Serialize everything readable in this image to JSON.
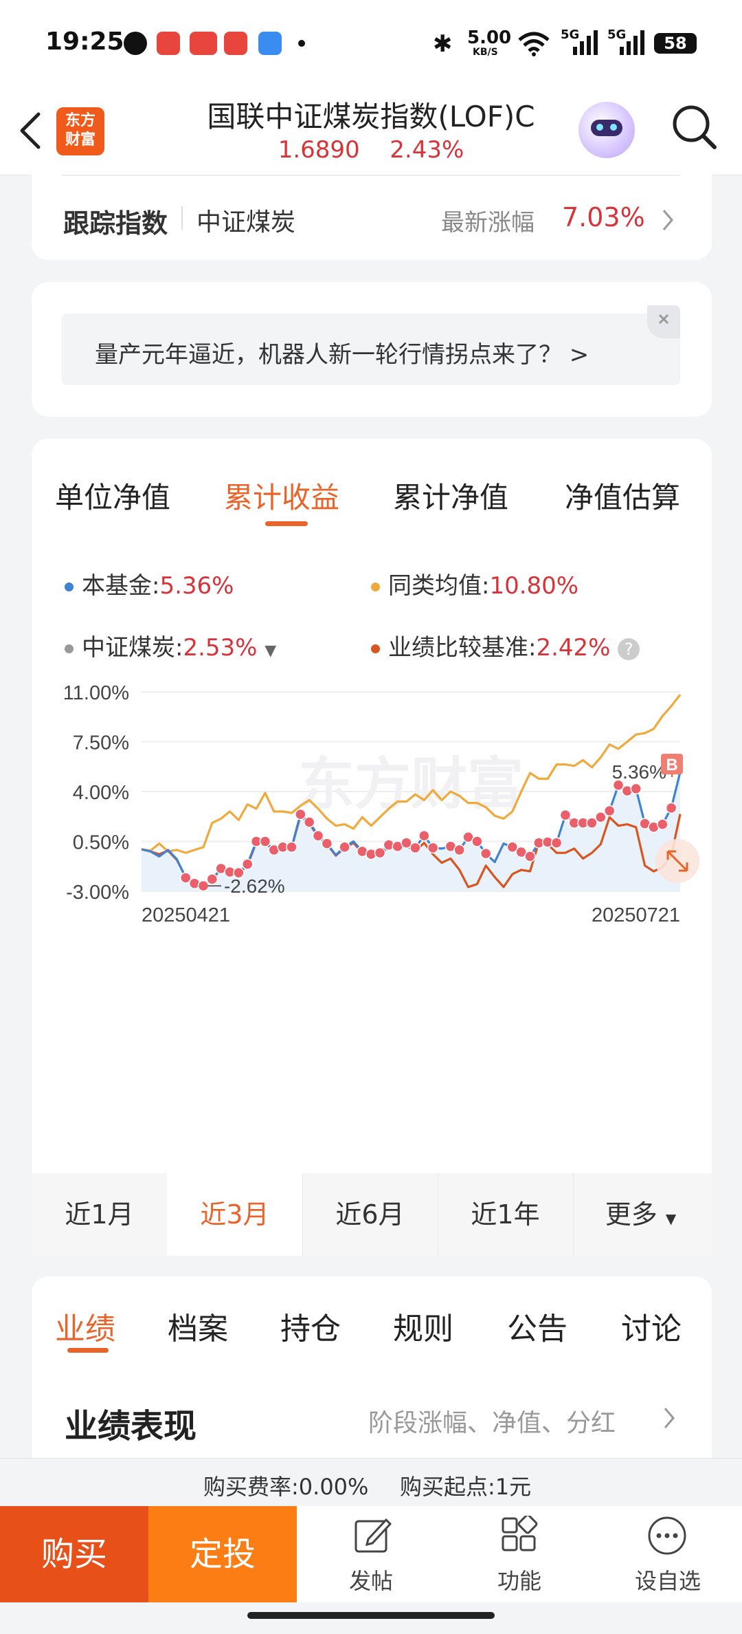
{
  "status_bar": {
    "time": "19:25",
    "net_speed": "5.00",
    "net_speed_unit": "KB/S",
    "signal_1": "5G",
    "signal_2": "5G",
    "battery": "58"
  },
  "header": {
    "logo_line1": "东方",
    "logo_line2": "财富",
    "title": "国联中证煤炭指数(LOF)C",
    "nav_value": "1.6890",
    "change_pct": "2.43%"
  },
  "tracking": {
    "label": "跟踪指数",
    "index_name": "中证煤炭",
    "latest_label": "最新涨幅",
    "latest_value": "7.03%"
  },
  "promo": {
    "text": "量产元年逼近，机器人新一轮行情拐点来了？ >"
  },
  "chart_tabs": [
    "单位净值",
    "累计收益",
    "累计净值",
    "净值估算"
  ],
  "legend": {
    "fund_label": "本基金:",
    "fund_value": "5.36%",
    "peer_label": "同类均值:",
    "peer_value": "10.80%",
    "index_label": "中证煤炭:",
    "index_value": "2.53%",
    "bench_label": "业绩比较基准:",
    "bench_value": "2.42%"
  },
  "colors": {
    "fund": "#3f82d4",
    "peer": "#f0a93a",
    "index": "#999999",
    "benchmark": "#d9541e",
    "accent": "#e8642a",
    "red": "#d7343a"
  },
  "chart_data": {
    "type": "line",
    "y_ticks": [
      "11.00%",
      "7.50%",
      "4.00%",
      "0.50%",
      "-3.00%"
    ],
    "ylim": [
      -3.0,
      11.0
    ],
    "x_start_label": "20250421",
    "x_end_label": "20250721",
    "min_label": "-2.62%",
    "end_label": "5.36%",
    "buy_marker": "B",
    "watermark": "东方财富",
    "series": [
      {
        "name": "本基金",
        "values": [
          -0.05,
          -0.2,
          -0.55,
          -0.1,
          -0.75,
          -2.05,
          -2.45,
          -2.62,
          -2.15,
          -1.4,
          -1.65,
          -1.7,
          -1.1,
          0.5,
          0.5,
          -0.1,
          0.1,
          0.1,
          2.4,
          1.85,
          0.9,
          0.35,
          -0.45,
          0.1,
          0.5,
          -0.2,
          -0.4,
          -0.3,
          0.25,
          0.15,
          0.4,
          0.05,
          0.9,
          0.05,
          0.0,
          0.15,
          -0.1,
          0.8,
          0.5,
          -0.35,
          -0.95,
          0.35,
          0.1,
          -0.25,
          -0.55,
          0.4,
          0.45,
          0.4,
          2.35,
          1.8,
          1.8,
          1.8,
          2.2,
          2.65,
          4.45,
          4.05,
          4.2,
          1.75,
          1.5,
          1.7,
          2.85,
          5.36
        ]
      },
      {
        "name": "同类均值",
        "values": [
          -0.05,
          -0.15,
          0.35,
          -0.2,
          -0.1,
          -0.3,
          -0.1,
          0.1,
          1.8,
          2.1,
          2.6,
          2.0,
          3.1,
          2.8,
          3.9,
          2.6,
          2.6,
          2.5,
          3.0,
          3.4,
          2.8,
          2.1,
          1.6,
          1.7,
          1.4,
          2.2,
          1.6,
          2.2,
          2.8,
          3.3,
          3.3,
          3.8,
          3.4,
          4.1,
          3.4,
          4.0,
          3.7,
          3.2,
          3.2,
          2.9,
          2.3,
          2.1,
          2.6,
          4.0,
          5.3,
          4.9,
          4.9,
          5.9,
          5.9,
          5.8,
          6.2,
          5.7,
          6.4,
          7.3,
          7.0,
          7.5,
          8.0,
          8.1,
          8.4,
          9.3,
          10.0,
          10.8
        ]
      },
      {
        "name": "业绩比较基准",
        "values": [
          -0.05,
          -0.2,
          -0.4,
          -0.15,
          -0.8,
          -2.0,
          -2.4,
          -2.55,
          -2.15,
          -1.45,
          -1.7,
          -1.75,
          -1.2,
          0.45,
          0.4,
          -0.15,
          0.05,
          0.05,
          2.3,
          1.75,
          0.85,
          0.3,
          -0.5,
          0.05,
          0.4,
          -0.3,
          -0.5,
          -0.4,
          0.1,
          0.05,
          0.2,
          -0.2,
          0.4,
          -0.4,
          -1.0,
          -0.7,
          -1.5,
          -2.7,
          -2.5,
          -1.2,
          -2.0,
          -2.7,
          -1.8,
          -1.5,
          -1.6,
          0.45,
          0.3,
          -0.3,
          -0.3,
          0.0,
          -0.7,
          -0.3,
          0.3,
          2.2,
          1.6,
          1.7,
          1.5,
          -1.2,
          -1.6,
          -1.3,
          -0.5,
          2.42
        ]
      }
    ],
    "fund_markers": [
      5,
      6,
      7,
      8,
      9,
      10,
      11,
      12,
      13,
      14,
      15,
      16,
      17,
      18,
      19,
      20,
      21,
      23,
      25,
      26,
      27,
      28,
      29,
      30,
      31,
      32,
      33,
      35,
      36,
      37,
      38,
      39,
      42,
      43,
      44,
      45,
      46,
      47,
      48,
      49,
      50,
      51,
      52,
      53,
      54,
      55,
      56,
      57,
      58,
      59,
      60
    ]
  },
  "periods": [
    "近1月",
    "近3月",
    "近6月",
    "近1年",
    "更多"
  ],
  "section_tabs": [
    "业绩",
    "档案",
    "持仓",
    "规则",
    "公告",
    "讨论"
  ],
  "performance": {
    "title": "业绩表现",
    "link": "阶段涨幅、净值、分红"
  },
  "fees": {
    "fee_text": "购买费率:0.00%",
    "min_text": "购买起点:1元"
  },
  "bottom_bar": {
    "buy": "购买",
    "auto_invest": "定投",
    "post": "发帖",
    "functions": "功能",
    "watchlist": "设自选"
  }
}
